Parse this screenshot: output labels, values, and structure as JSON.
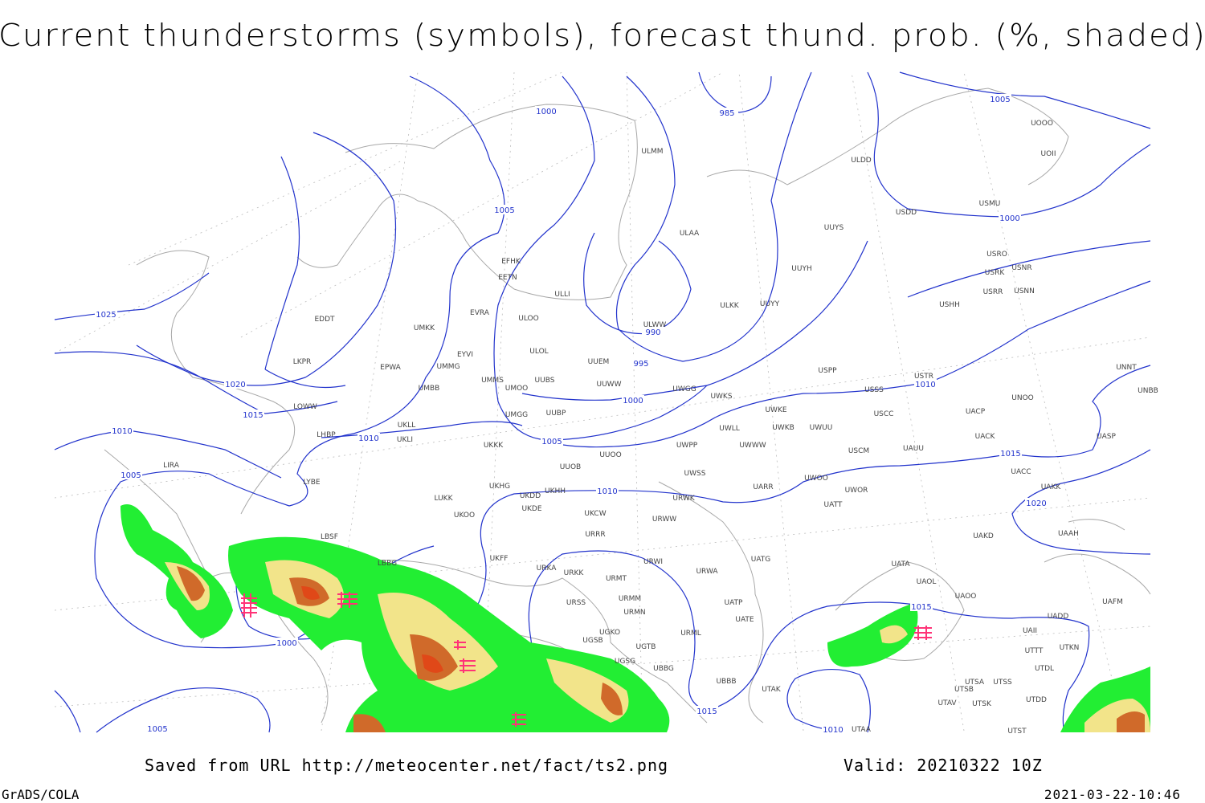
{
  "header": {
    "title": "Current thunderstorms (symbols), forecast thund. prob. (%, shaded)"
  },
  "isobar_labels": [
    "1000",
    "985",
    "1005",
    "1005",
    "1000",
    "1025",
    "990",
    "995",
    "1020",
    "1000",
    "1010",
    "1015",
    "1010",
    "1005",
    "1010",
    "1005",
    "1015",
    "1010",
    "1020",
    "1015",
    "1000",
    "1015",
    "1005",
    "1010"
  ],
  "station_labels": [
    "ULMM",
    "ULDD",
    "UOII",
    "UOOO",
    "USMU",
    "USDD",
    "ULAA",
    "UUYS",
    "USRO",
    "USRK",
    "USNR",
    "USRR",
    "USNN",
    "UUYH",
    "EFHK",
    "EETN",
    "ULLI",
    "ULKK",
    "UUYY",
    "USHH",
    "EVRA",
    "ULOO",
    "UMKK",
    "EDDT",
    "ULWW",
    "EYVI",
    "ULOL",
    "UUEM",
    "LKPR",
    "EPWA",
    "UMMG",
    "UUWW",
    "USPP",
    "USTR",
    "UMMS",
    "UUBS",
    "UMOO",
    "UWGG",
    "UMBB",
    "UWKS",
    "USSS",
    "UNOO",
    "UNNT",
    "UNBB",
    "LOWW",
    "UWKE",
    "UACP",
    "UMGG",
    "UUBP",
    "USCC",
    "UKLL",
    "UWLL",
    "UWKB",
    "UWUU",
    "LHBP",
    "UKLI",
    "UKKK",
    "UWPP",
    "UWWW",
    "UACK",
    "UASP",
    "USCM",
    "UAUU",
    "UUOO",
    "LIRA",
    "UUOB",
    "UWSS",
    "UACC",
    "LYBE",
    "UKHG",
    "UKDD",
    "UKHH",
    "UWOO",
    "UARR",
    "UWOR",
    "UAKK",
    "LUKK",
    "UKDE",
    "URWK",
    "UATT",
    "UKOO",
    "UKCW",
    "URWW",
    "URRR",
    "UAKD",
    "UAAH",
    "LBSF",
    "LBBG",
    "UKFF",
    "URKA",
    "URKK",
    "URWI",
    "URWA",
    "UATG",
    "UATA",
    "UAOL",
    "UAOO",
    "UAFM",
    "URMT",
    "URMM",
    "URSS",
    "UATP",
    "URMN",
    "UATE",
    "UADD",
    "UAII",
    "UGKO",
    "URML",
    "UGSB",
    "UTTT",
    "UTKN",
    "UGTB",
    "UGSG",
    "UBBG",
    "UTDL",
    "UBBB",
    "UTAK",
    "UTSA",
    "UTSS",
    "UTSB",
    "UTDD",
    "UTAV",
    "UTSK",
    "UTAA",
    "UTST"
  ],
  "footer": {
    "source": "Saved from URL http://meteocenter.net/fact/ts2.png",
    "valid": "Valid: 20210322 10Z",
    "software": "GrADS/COLA",
    "timestamp": "2021-03-22-10:46"
  }
}
